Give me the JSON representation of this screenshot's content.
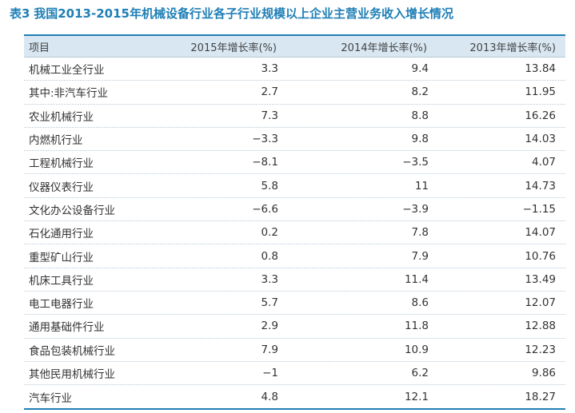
{
  "title": {
    "tag": "表3",
    "text": "我国2013-2015年机械设备行业各子行业规模以上企业主营业务收入增长情况"
  },
  "table": {
    "headers": [
      "项目",
      "2015年增长率(%)",
      "2014年增长率(%)",
      "2013年增长率(%)"
    ],
    "rows": [
      [
        "机械工业全行业",
        "3.3",
        "9.4",
        "13.84"
      ],
      [
        "其中:非汽车行业",
        "2.7",
        "8.2",
        "11.95"
      ],
      [
        "农业机械行业",
        "7.3",
        "8.8",
        "16.26"
      ],
      [
        "内燃机行业",
        "−3.3",
        "9.8",
        "14.03"
      ],
      [
        "工程机械行业",
        "−8.1",
        "−3.5",
        "4.07"
      ],
      [
        "仪器仪表行业",
        "5.8",
        "11",
        "14.73"
      ],
      [
        "文化办公设备行业",
        "−6.6",
        "−3.9",
        "−1.15"
      ],
      [
        "石化通用行业",
        "0.2",
        "7.8",
        "14.07"
      ],
      [
        "重型矿山行业",
        "0.8",
        "7.9",
        "10.76"
      ],
      [
        "机床工具行业",
        "3.3",
        "11.4",
        "13.49"
      ],
      [
        "电工电器行业",
        "5.7",
        "8.6",
        "12.07"
      ],
      [
        "通用基础件行业",
        "2.9",
        "11.8",
        "12.88"
      ],
      [
        "食品包装机械行业",
        "7.9",
        "10.9",
        "12.23"
      ],
      [
        "其他民用机械行业",
        "−1",
        "6.2",
        "9.86"
      ],
      [
        "汽车行业",
        "4.8",
        "12.1",
        "18.27"
      ]
    ]
  },
  "colors": {
    "accent": "#1f7fb6",
    "header_bg": "#d8e7f2"
  }
}
